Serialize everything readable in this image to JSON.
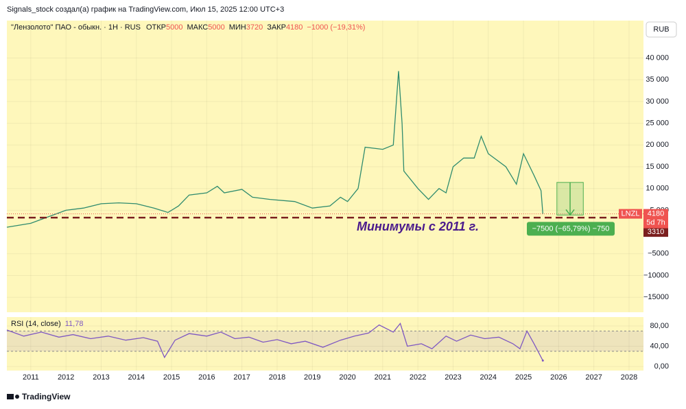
{
  "header": {
    "author": "Signals_stock создал(а) график на TradingView.com, Июл 15, 2025 12:00 UTC+3",
    "currency": "RUB",
    "footer": "TradingView"
  },
  "chart_data": [
    {
      "type": "line",
      "title": "\"Лензолото\" ПАО - обыкн. · 1H · RUS",
      "ohlc": [
        {
          "label": "ОТКР",
          "value": 5000
        },
        {
          "label": "МАКС",
          "value": 5000
        },
        {
          "label": "МИН",
          "value": 3720
        },
        {
          "label": "ЗАКР",
          "value": 4180
        }
      ],
      "change": "−1000 (−19,31%)",
      "color": "#2e8b6e",
      "background": "#fef7bb",
      "x": [
        2010.32,
        2011,
        2011.5,
        2012,
        2012.5,
        2013,
        2013.5,
        2014,
        2014.5,
        2014.9,
        2015.2,
        2015.5,
        2016,
        2016.3,
        2016.5,
        2017,
        2017.3,
        2017.8,
        2018.5,
        2019,
        2019.5,
        2019.8,
        2020,
        2020.3,
        2020.5,
        2021,
        2021.3,
        2021.45,
        2021.55,
        2021.6,
        2022,
        2022.3,
        2022.6,
        2022.8,
        2023,
        2023.3,
        2023.6,
        2023.8,
        2024,
        2024.5,
        2024.8,
        2025,
        2025.3,
        2025.5,
        2025.55
      ],
      "values": [
        1100,
        2000,
        3500,
        5000,
        5500,
        6500,
        6700,
        6500,
        5500,
        4500,
        6000,
        8500,
        9000,
        10500,
        9000,
        9800,
        8000,
        7500,
        7000,
        5500,
        6000,
        8000,
        7000,
        10000,
        19500,
        19000,
        20000,
        37000,
        25000,
        14000,
        10000,
        7500,
        10000,
        9000,
        15000,
        17000,
        17000,
        22000,
        18000,
        15000,
        11000,
        18000,
        13000,
        9500,
        4180
      ],
      "xlim": [
        2010.32,
        2028.41
      ],
      "xticks": [
        2011,
        2012,
        2013,
        2014,
        2015,
        2016,
        2017,
        2018,
        2019,
        2020,
        2021,
        2022,
        2023,
        2024,
        2025,
        2026,
        2027,
        2028
      ],
      "ylim": [
        -18440,
        48600
      ],
      "yticks": [
        {
          "value": 40000,
          "label": "40 000"
        },
        {
          "value": 35000,
          "label": "35 000"
        },
        {
          "value": 30000,
          "label": "30 000"
        },
        {
          "value": 25000,
          "label": "25 000"
        },
        {
          "value": 20000,
          "label": "20 000"
        },
        {
          "value": 15000,
          "label": "15 000"
        },
        {
          "value": 10000,
          "label": "10 000"
        },
        {
          "value": 5000,
          "label": "5 000"
        },
        {
          "value": -5000,
          "label": "−5000"
        },
        {
          "value": -10000,
          "label": "−10000"
        },
        {
          "value": -15000,
          "label": "−15000"
        }
      ],
      "annotation": {
        "text": "Минимумы с 2011 г.",
        "level": 3310,
        "color": "#7b1f1f"
      },
      "last": {
        "symbol": "LNZL",
        "value": 4180,
        "countdown": "5d 7h"
      },
      "measure": {
        "label": "−7500 (−65,79%) −750",
        "from": 11400,
        "to": 3900,
        "x": [
          2025.95,
          2026.7
        ]
      }
    },
    {
      "type": "line",
      "title": "RSI (14, close)",
      "current": 11.78,
      "current_label": "11,78",
      "color": "#7e57c2",
      "x": [
        2010.32,
        2010.8,
        2011.3,
        2011.8,
        2012.2,
        2012.7,
        2013.2,
        2013.7,
        2014.2,
        2014.6,
        2014.8,
        2015.1,
        2015.5,
        2016,
        2016.4,
        2016.8,
        2017.2,
        2017.6,
        2018,
        2018.4,
        2018.8,
        2019.3,
        2019.8,
        2020.2,
        2020.6,
        2020.9,
        2021.3,
        2021.5,
        2021.7,
        2022.1,
        2022.4,
        2022.8,
        2023.1,
        2023.5,
        2023.9,
        2024.3,
        2024.7,
        2024.9,
        2025.1,
        2025.3,
        2025.55
      ],
      "values": [
        72,
        60,
        68,
        58,
        63,
        55,
        60,
        52,
        57,
        50,
        18,
        52,
        65,
        60,
        68,
        55,
        58,
        48,
        53,
        45,
        50,
        38,
        52,
        60,
        66,
        82,
        68,
        85,
        40,
        45,
        35,
        60,
        50,
        62,
        55,
        58,
        45,
        35,
        70,
        45,
        11.78
      ],
      "xlim": [
        2010.32,
        2028.41
      ],
      "ylim": [
        -8,
        97.6
      ],
      "yticks": [
        {
          "value": 80,
          "label": "80,00"
        },
        {
          "value": 40,
          "label": "40,00"
        },
        {
          "value": 0,
          "label": "0,00"
        }
      ],
      "band": [
        30,
        70
      ]
    }
  ]
}
